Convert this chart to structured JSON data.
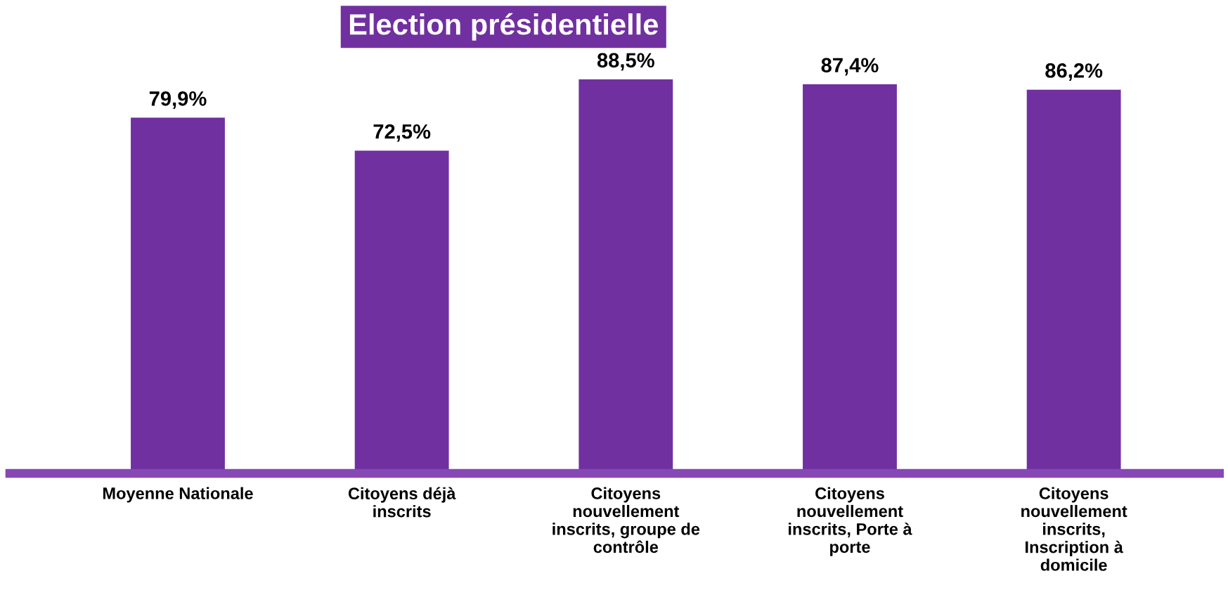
{
  "chart_data": {
    "type": "bar",
    "title": "Election présidentielle",
    "categories": [
      "Moyenne Nationale",
      "Citoyens déjà inscrits",
      "Citoyens nouvellement inscrits, groupe de contrôle",
      "Citoyens nouvellement inscrits, Porte à porte",
      "Citoyens nouvellement inscrits, Inscription à domicile"
    ],
    "values": [
      79.9,
      72.5,
      88.5,
      87.4,
      86.2
    ],
    "value_labels": [
      "79,9%",
      "72,5%",
      "88,5%",
      "87,4%",
      "86,2%"
    ],
    "color": "#7030a0",
    "grid": false,
    "legend": false
  }
}
